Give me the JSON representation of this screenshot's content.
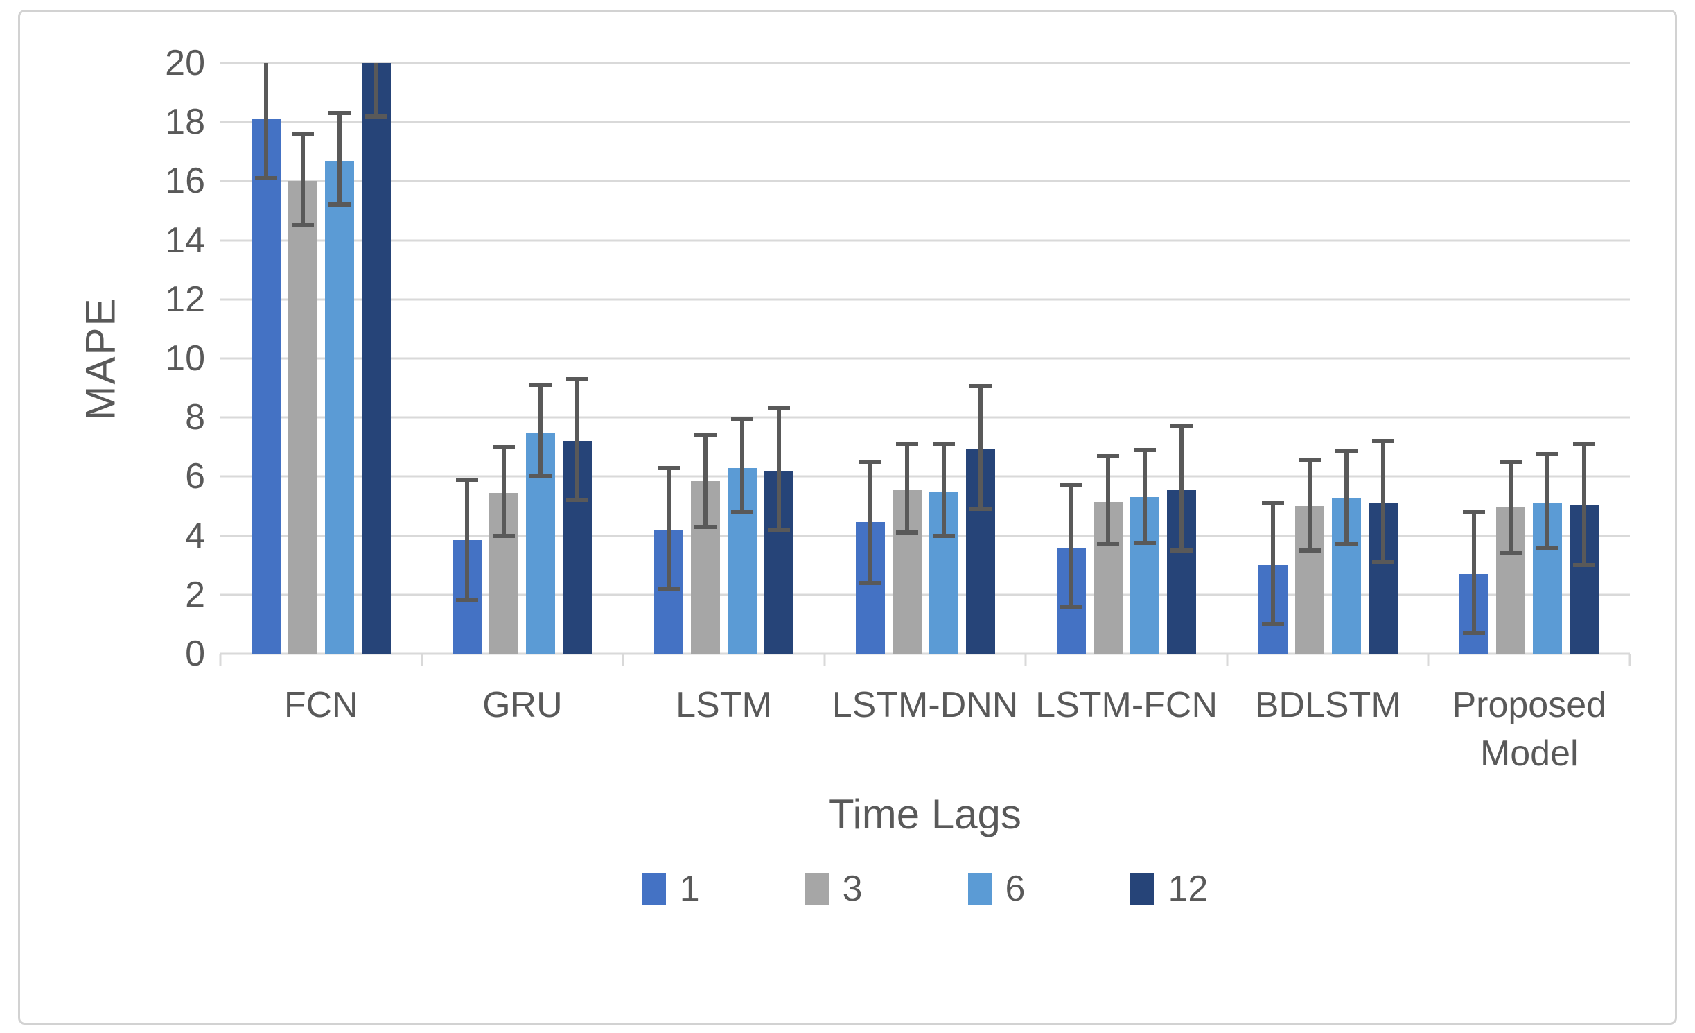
{
  "colors": {
    "text": "#595959",
    "gridline": "#d9d9d9",
    "error_bar": "#595959",
    "frame_border": "#d2d2d2"
  },
  "chart_data": {
    "type": "bar",
    "title": "",
    "xlabel": "Time Lags",
    "ylabel": "MAPE",
    "ylim": [
      0,
      20
    ],
    "yticks": [
      0,
      2,
      4,
      6,
      8,
      10,
      12,
      14,
      16,
      18,
      20
    ],
    "grid": true,
    "legend_position": "bottom",
    "error_bars": true,
    "categories": [
      "FCN",
      "GRU",
      "LSTM",
      "LSTM-DNN",
      "LSTM-FCN",
      "BDLSTM",
      "Proposed Model"
    ],
    "series": [
      {
        "name": "1",
        "color": "#4472c4",
        "values": [
          18.1,
          3.85,
          4.2,
          4.45,
          3.6,
          3.0,
          2.7
        ],
        "err_low": [
          16.1,
          1.8,
          2.2,
          2.4,
          1.6,
          1.0,
          0.7
        ],
        "err_high": [
          20.0,
          5.9,
          6.3,
          6.5,
          5.7,
          5.1,
          4.8
        ],
        "err_high_clipped": [
          true,
          false,
          false,
          false,
          false,
          false,
          false
        ],
        "value_clipped": [
          false,
          false,
          false,
          false,
          false,
          false,
          false
        ]
      },
      {
        "name": "3",
        "color": "#a6a6a6",
        "values": [
          16.0,
          5.45,
          5.85,
          5.55,
          5.15,
          5.0,
          4.95
        ],
        "err_low": [
          14.5,
          4.0,
          4.3,
          4.1,
          3.7,
          3.5,
          3.4
        ],
        "err_high": [
          17.6,
          7.0,
          7.4,
          7.1,
          6.7,
          6.55,
          6.5
        ],
        "err_high_clipped": [
          false,
          false,
          false,
          false,
          false,
          false,
          false
        ],
        "value_clipped": [
          false,
          false,
          false,
          false,
          false,
          false,
          false
        ]
      },
      {
        "name": "6",
        "color": "#5b9bd5",
        "values": [
          16.7,
          7.5,
          6.3,
          5.5,
          5.3,
          5.25,
          5.1
        ],
        "err_low": [
          15.2,
          6.0,
          4.8,
          4.0,
          3.75,
          3.7,
          3.6
        ],
        "err_high": [
          18.3,
          9.1,
          7.95,
          7.1,
          6.9,
          6.85,
          6.75
        ],
        "err_high_clipped": [
          false,
          false,
          false,
          false,
          false,
          false,
          false
        ],
        "value_clipped": [
          false,
          false,
          false,
          false,
          false,
          false,
          false
        ]
      },
      {
        "name": "12",
        "color": "#264478",
        "values": [
          20.0,
          7.2,
          6.2,
          6.95,
          5.55,
          5.1,
          5.05
        ],
        "err_low": [
          18.2,
          5.2,
          4.2,
          4.9,
          3.5,
          3.1,
          3.0
        ],
        "err_high": [
          20.0,
          9.3,
          8.3,
          9.05,
          7.7,
          7.2,
          7.1
        ],
        "err_high_clipped": [
          true,
          false,
          false,
          false,
          false,
          false,
          false
        ],
        "value_clipped": [
          true,
          false,
          false,
          false,
          false,
          false,
          false
        ]
      }
    ]
  }
}
